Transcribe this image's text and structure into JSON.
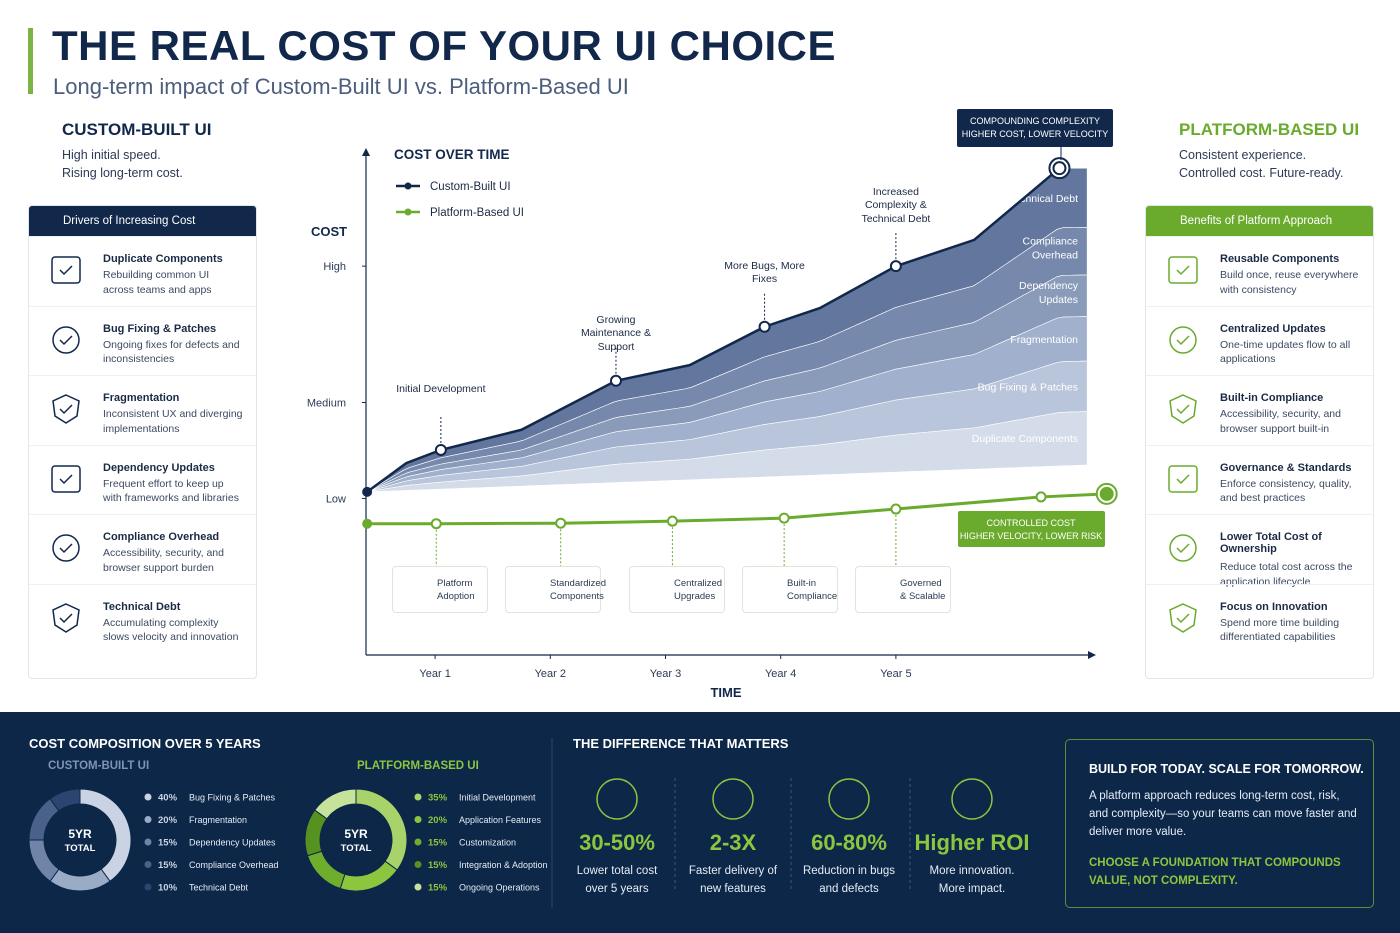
{
  "header": {
    "title": "THE REAL COST OF YOUR UI CHOICE",
    "subtitle": "Long-term impact of Custom-Built UI vs. Platform-Based UI"
  },
  "custom": {
    "title": "CUSTOM-BUILT UI",
    "lines": [
      "High initial speed.",
      "Rising long-term cost."
    ],
    "panel_title": "Drivers of Increasing Cost",
    "items": [
      {
        "title": "Duplicate Components",
        "desc": "Rebuilding common UI across teams and apps"
      },
      {
        "title": "Bug Fixing & Patches",
        "desc": "Ongoing fixes for defects and inconsistencies"
      },
      {
        "title": "Fragmentation",
        "desc": "Inconsistent UX and diverging implementations"
      },
      {
        "title": "Dependency Updates",
        "desc": "Frequent effort to keep up with frameworks and libraries"
      },
      {
        "title": "Compliance Overhead",
        "desc": "Accessibility, security, and browser support burden"
      },
      {
        "title": "Technical Debt",
        "desc": "Accumulating complexity slows velocity and innovation"
      }
    ]
  },
  "platform": {
    "title": "PLATFORM-BASED UI",
    "lines": [
      "Consistent experience.",
      "Controlled cost. Future-ready."
    ],
    "panel_title": "Benefits of Platform Approach",
    "items": [
      {
        "title": "Reusable Components",
        "desc": "Build once, reuse everywhere with consistency"
      },
      {
        "title": "Centralized Updates",
        "desc": "One-time updates flow to all applications"
      },
      {
        "title": "Built-in Compliance",
        "desc": "Accessibility, security, and browser support built-in"
      },
      {
        "title": "Governance & Standards",
        "desc": "Enforce consistency, quality, and best practices"
      },
      {
        "title": "Lower Total Cost of Ownership",
        "desc": "Reduce total cost across the application lifecycle"
      },
      {
        "title": "Focus on Innovation",
        "desc": "Spend more time building differentiated capabilities"
      }
    ]
  },
  "chart_data": [
    {
      "type": "line",
      "title": "COST OVER TIME",
      "y_label": "COST",
      "x_label": "TIME",
      "xlim": [
        0.4,
        6.85
      ],
      "xticks": [
        {
          "value": 1,
          "label": "Year 1"
        },
        {
          "value": 2,
          "label": "Year 2"
        },
        {
          "value": 3,
          "label": "Year 3"
        },
        {
          "value": 4,
          "label": "Year 4"
        },
        {
          "value": 5,
          "label": "Year 5"
        }
      ],
      "ylim": [
        0,
        100
      ],
      "yticks": [
        {
          "value": 31,
          "label": "Low"
        },
        {
          "value": 50,
          "label": "Medium"
        },
        {
          "value": 77,
          "label": "High"
        }
      ],
      "series": [
        {
          "name": "Custom-Built UI",
          "color": "#12284b",
          "x": [
            0.41,
            0.75,
            1.05,
            1.75,
            2.57,
            3.21,
            3.86,
            4.34,
            5.0,
            5.68,
            6.42
          ],
          "values": [
            32.3,
            38,
            40.6,
            44.6,
            54.3,
            57.4,
            65,
            68.7,
            77,
            82.2,
            96.4
          ]
        },
        {
          "name": "Platform-Based UI",
          "color": "#6aab2e",
          "x": [
            0.41,
            1.01,
            2.09,
            3.06,
            4.03,
            5.0,
            6.26,
            6.83
          ],
          "values": [
            26,
            26,
            26.1,
            26.5,
            27.1,
            28.9,
            31.3,
            31.9
          ]
        }
      ],
      "annotations": [
        "Initial Development",
        "Growing Maintenance & Support",
        "More Bugs, More Fixes",
        "Increased Complexity & Technical Debt"
      ],
      "layers": [
        "Technical Debt",
        "Compliance Overhead",
        "Dependency Updates",
        "Fragmentation",
        "Bug Fixing & Patches",
        "Duplicate Components"
      ],
      "badges": [
        "Platform Adoption",
        "Standardized Components",
        "Centralized Upgrades",
        "Built-in Compliance",
        "Governed & Scalable"
      ],
      "callout_top": [
        "COMPOUNDING COMPLEXITY",
        "HIGHER COST, LOWER VELOCITY"
      ],
      "callout_bottom": [
        "CONTROLLED COST",
        "HIGHER VELOCITY, LOWER RISK"
      ]
    },
    {
      "type": "pie",
      "title": "CUSTOM-BUILT UI",
      "center": [
        "5YR",
        "TOTAL"
      ],
      "categories": [
        "Bug Fixing & Patches",
        "Fragmentation",
        "Dependency Updates",
        "Compliance Overhead",
        "Technical Debt"
      ],
      "values": [
        40,
        20,
        15,
        15,
        10
      ],
      "value_labels": [
        "40%",
        "20%",
        "15%",
        "15%",
        "10%"
      ],
      "colors": [
        "#c9d3e3",
        "#9aabc6",
        "#6f84a8",
        "#4a6189",
        "#2e4470"
      ]
    },
    {
      "type": "pie",
      "title": "PLATFORM-BASED UI",
      "center": [
        "5YR",
        "TOTAL"
      ],
      "categories": [
        "Initial Development",
        "Application Features",
        "Customization",
        "Integration & Adoption",
        "Ongoing Operations"
      ],
      "values": [
        35,
        20,
        15,
        15,
        15
      ],
      "value_labels": [
        "35%",
        "20%",
        "15%",
        "15%",
        "15%"
      ],
      "colors": [
        "#a8d26a",
        "#8cc63f",
        "#6fae2c",
        "#55921f",
        "#c6e39b"
      ]
    }
  ],
  "composition": {
    "title": "COST COMPOSITION OVER 5 YEARS"
  },
  "difference": {
    "title": "THE DIFFERENCE THAT MATTERS",
    "stats": [
      {
        "value": "30-50%",
        "desc": [
          "Lower total cost",
          "over 5 years"
        ]
      },
      {
        "value": "2-3X",
        "desc": [
          "Faster delivery of",
          "new features"
        ]
      },
      {
        "value": "60-80%",
        "desc": [
          "Reduction in bugs",
          "and defects"
        ]
      },
      {
        "value": "Higher ROI",
        "desc": [
          "More innovation.",
          "More impact."
        ]
      }
    ]
  },
  "cta": {
    "title": "BUILD FOR TODAY. SCALE FOR TOMORROW.",
    "text": "A platform approach reduces long-term cost, risk, and complexity—so your teams can move faster and deliver more value.",
    "highlight": "CHOOSE A FOUNDATION THAT COMPOUNDS VALUE, NOT COMPLEXITY."
  }
}
